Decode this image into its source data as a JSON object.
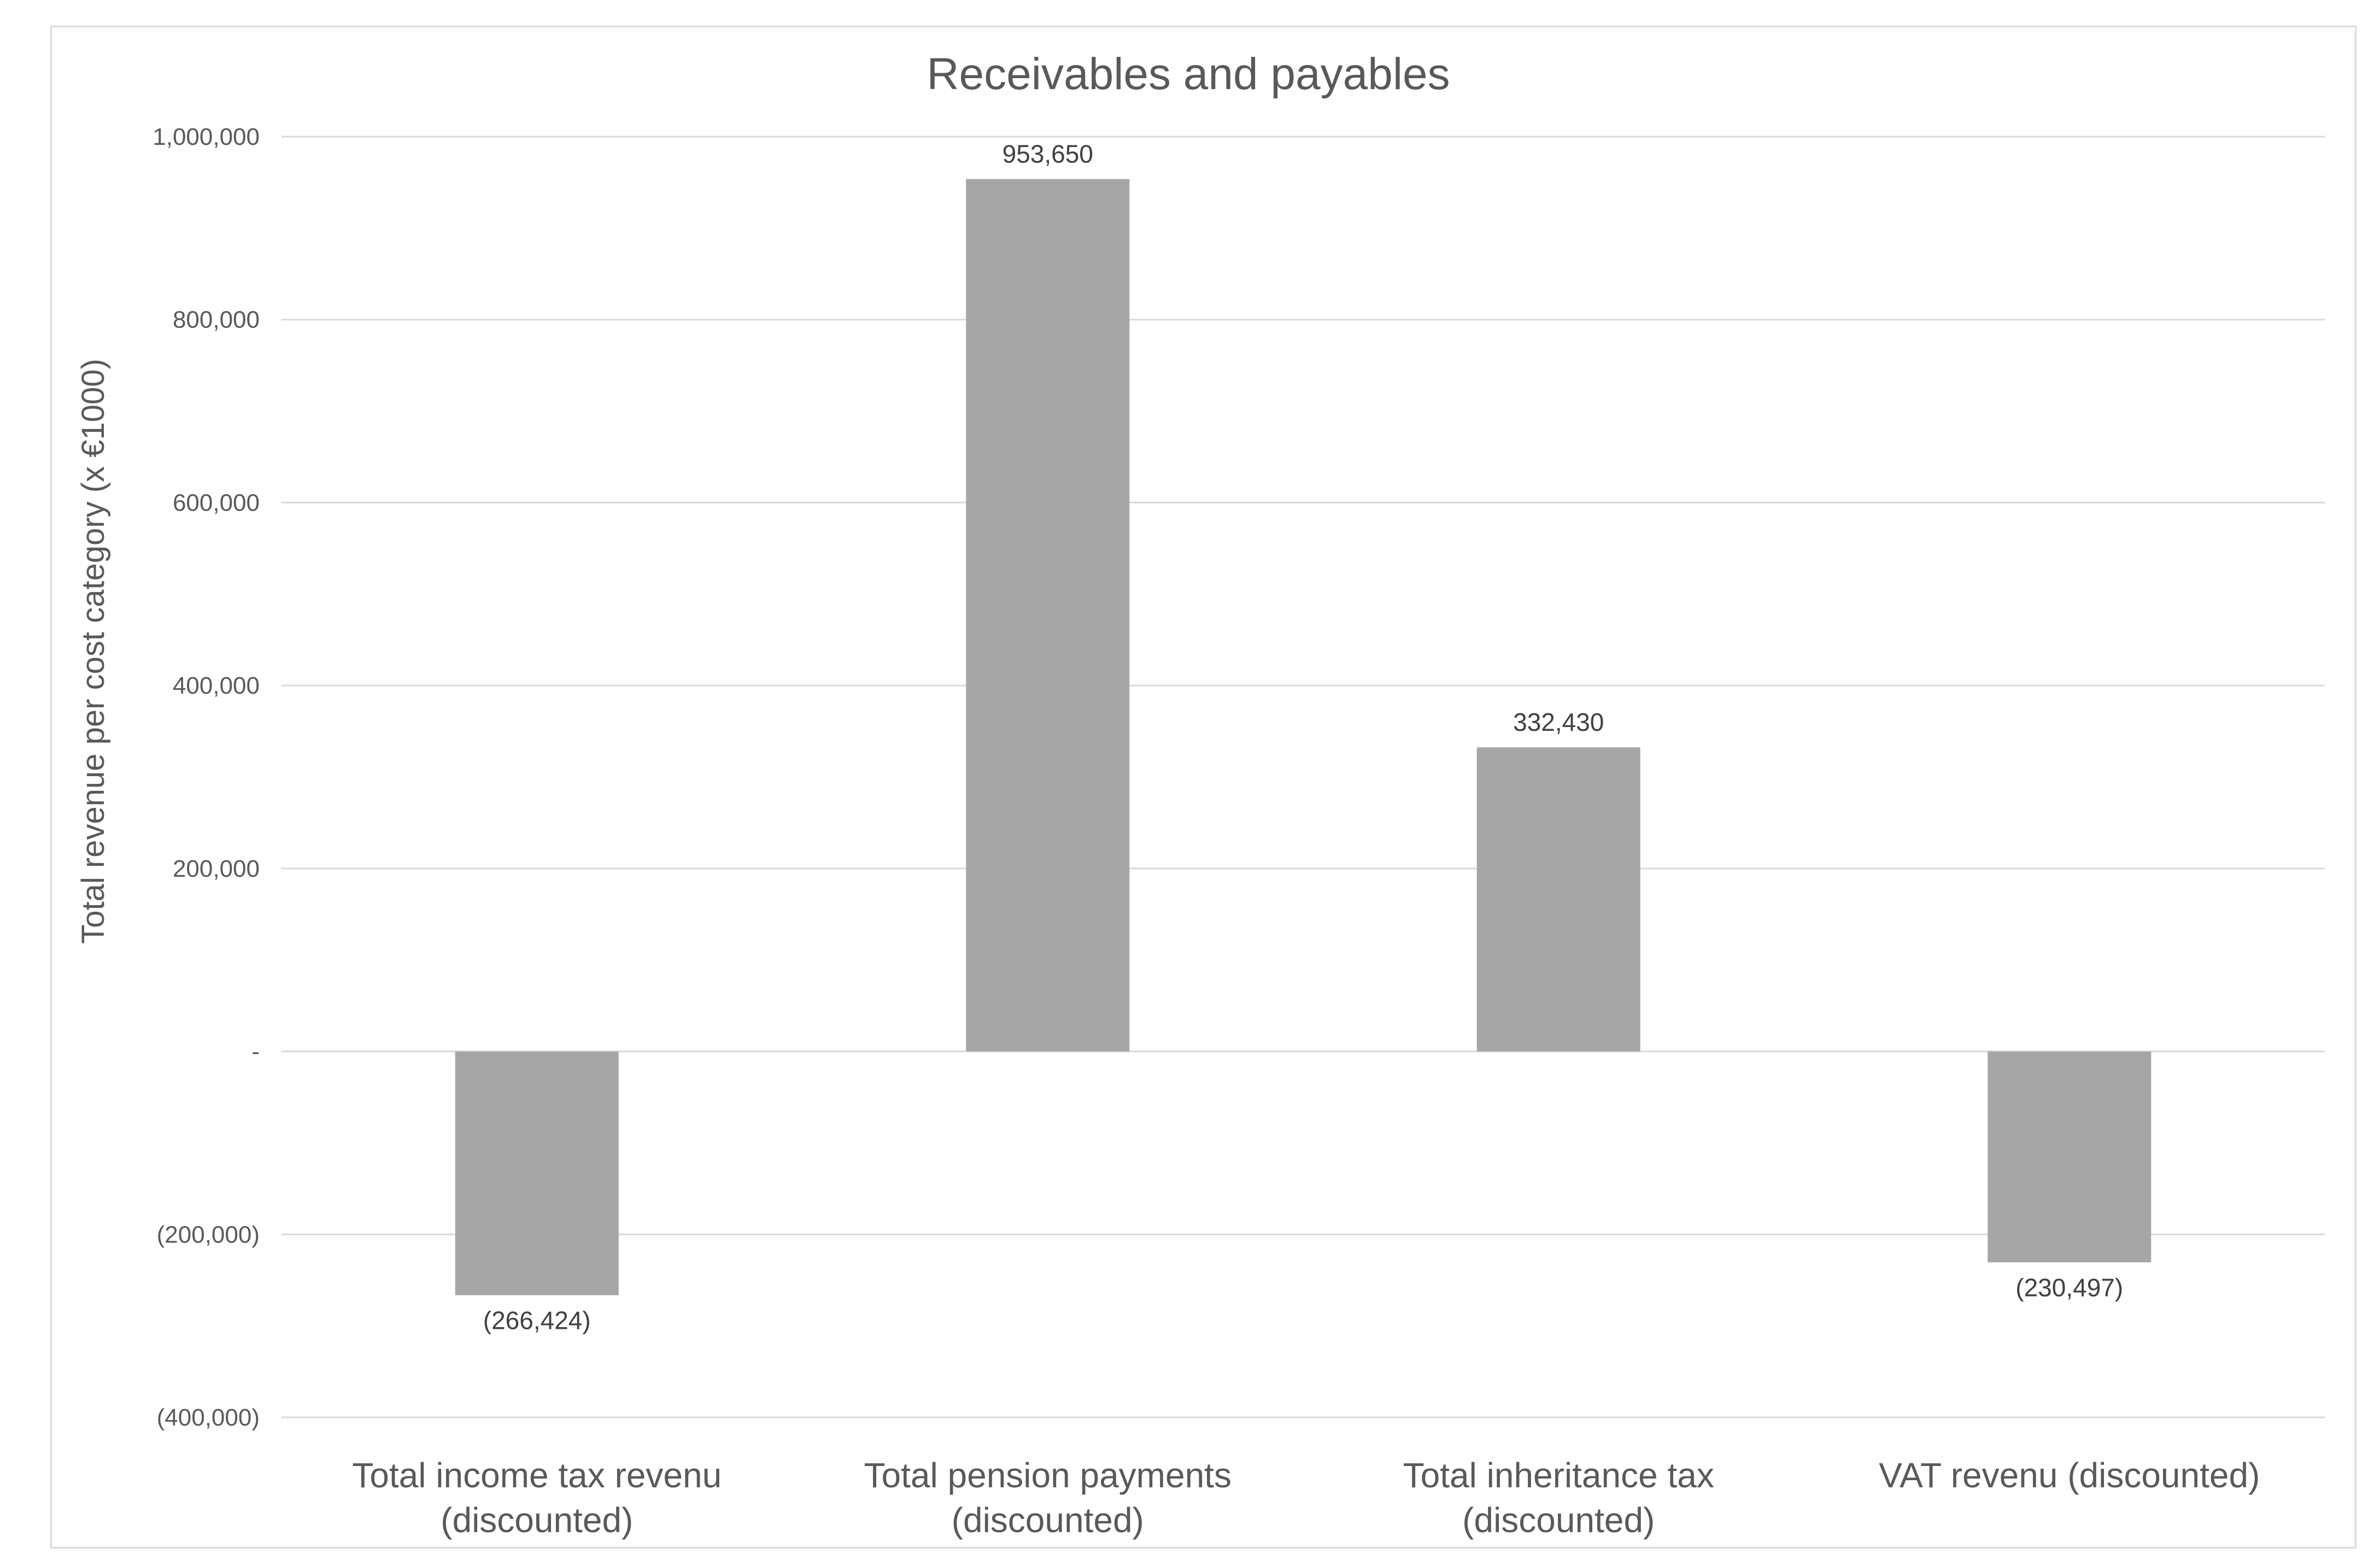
{
  "chart_data": {
    "type": "bar",
    "title": "Receivables and payables",
    "xlabel": "",
    "ylabel": "Total revenue per cost category (x €1000)",
    "categories": [
      [
        "Total income tax revenu",
        "(discounted)"
      ],
      [
        "Total pension payments",
        "(discounted)"
      ],
      [
        "Total inheritance tax",
        "(discounted)"
      ],
      [
        "VAT revenu (discounted)"
      ]
    ],
    "values": [
      -266424,
      953650,
      332430,
      -230497
    ],
    "data_labels": [
      "(266,424)",
      "953,650",
      "332,430",
      "(230,497)"
    ],
    "ylim": [
      -400000,
      1000000
    ],
    "yticks": [
      -400000,
      -200000,
      0,
      200000,
      400000,
      600000,
      800000,
      1000000
    ],
    "ytick_labels": [
      "(400,000)",
      "(200,000)",
      "-",
      "200,000",
      "400,000",
      "600,000",
      "800,000",
      "1,000,000"
    ],
    "grid": true,
    "legend": "none",
    "bar_color": "#a6a6a6"
  }
}
